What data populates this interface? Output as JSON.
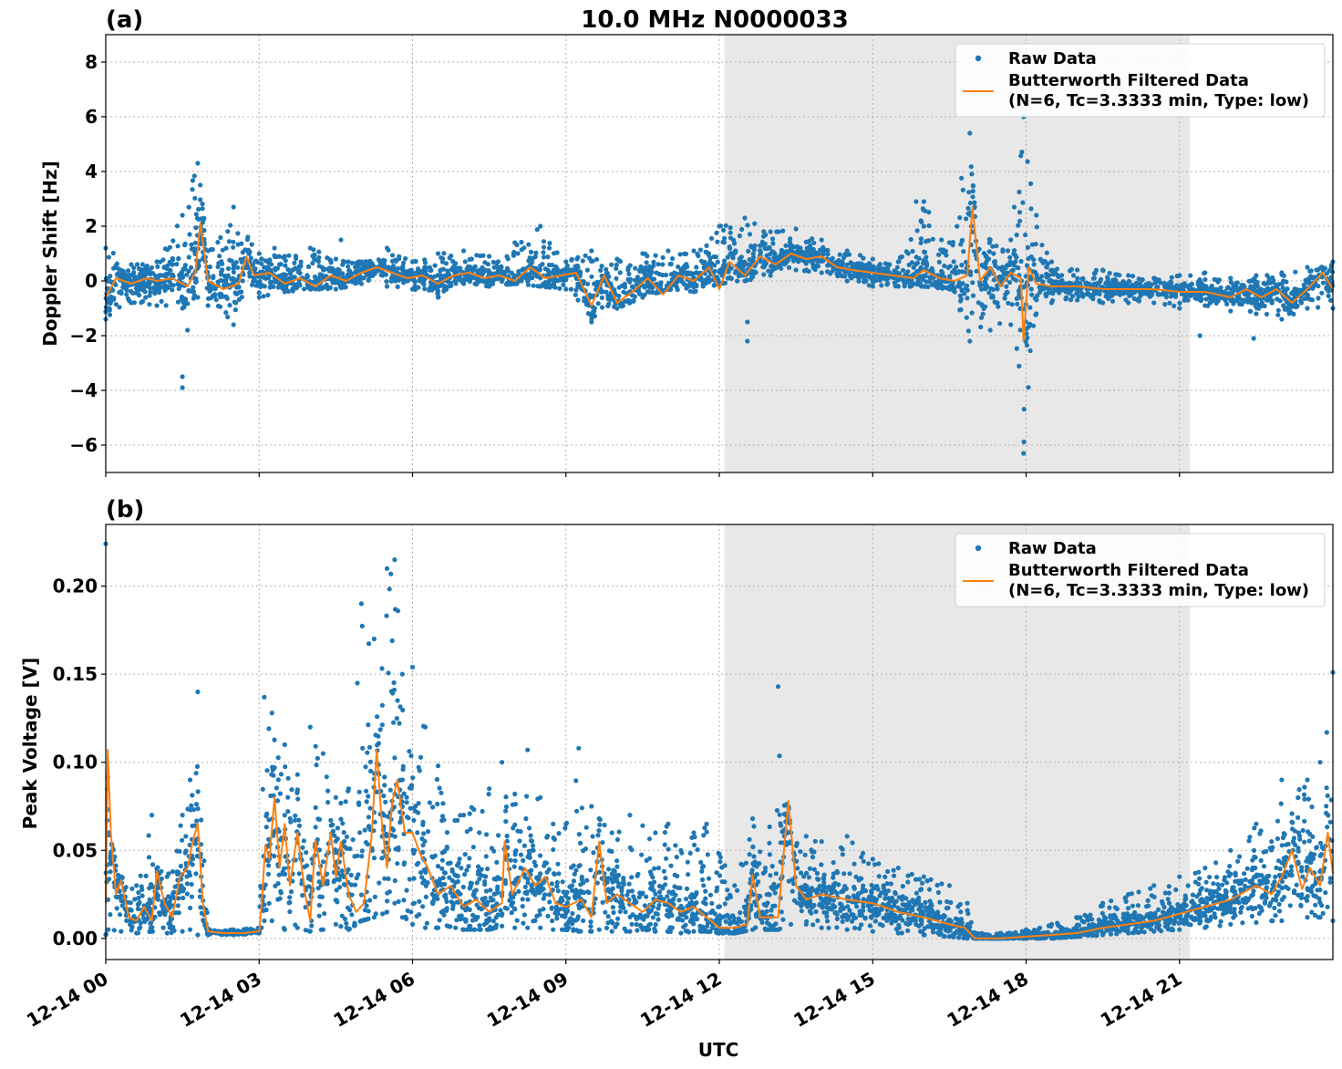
{
  "figure": {
    "title": "10.0 MHz N0000033",
    "xlabel": "UTC"
  },
  "colors": {
    "raw": "#1f77b4",
    "filtered": "#ff7f0e",
    "shade": "#e8e8e8",
    "grid": "#b0b0b0"
  },
  "chart_data": [
    {
      "type": "scatter",
      "panel_label": "(a)",
      "ylabel": "Doppler Shift [Hz]",
      "xlim_hours": [
        0,
        24
      ],
      "ylim": [
        -7,
        9
      ],
      "yticks": [
        8,
        6,
        4,
        2,
        0,
        -2,
        -4,
        -6
      ],
      "ytick_labels": [
        "8",
        "6",
        "4",
        "2",
        "0",
        "−2",
        "−4",
        "−6"
      ],
      "shaded_region_hours": [
        12.1,
        21.2
      ],
      "grid": true,
      "legend": {
        "placement": "top-right",
        "entries": [
          {
            "label": "Raw Data",
            "marker": "dot"
          },
          {
            "label": "Butterworth Filtered Data",
            "label2": "(N=6, Tc=3.3333 min, Type: low)",
            "marker": "line"
          }
        ]
      },
      "series": [
        {
          "name": "Raw Data",
          "type": "scatter",
          "x": [
            0.0,
            0.5,
            1.0,
            1.5,
            1.8,
            2.0,
            2.5,
            3.0,
            3.5,
            4.0,
            4.5,
            5.0,
            5.5,
            6.0,
            6.5,
            7.0,
            7.5,
            8.0,
            8.5,
            9.0,
            9.5,
            10.0,
            10.5,
            11.0,
            11.5,
            12.0,
            12.5,
            13.0,
            13.5,
            14.0,
            14.5,
            15.0,
            15.5,
            16.0,
            16.5,
            16.9,
            17.3,
            17.7,
            17.95,
            18.2,
            18.5,
            19.0,
            19.5,
            20.0,
            20.5,
            21.0,
            21.5,
            22.0,
            22.5,
            23.0,
            23.5,
            24.0
          ],
          "y_min": [
            -1.4,
            -0.8,
            -0.9,
            -1.0,
            -0.6,
            -0.9,
            -1.6,
            -0.6,
            -0.4,
            -0.3,
            -0.3,
            -0.1,
            -0.2,
            -0.3,
            -0.6,
            -0.1,
            -0.2,
            -0.1,
            -0.2,
            -0.3,
            -1.5,
            -1.0,
            -0.6,
            -0.3,
            -0.4,
            -0.1,
            0.0,
            0.2,
            0.4,
            0.3,
            0.0,
            -0.2,
            -0.2,
            -0.2,
            -0.3,
            -2.2,
            -1.8,
            -1.6,
            -6.3,
            -1.2,
            -0.8,
            -0.7,
            -0.8,
            -0.8,
            -0.8,
            -1.0,
            -0.9,
            -1.1,
            -1.2,
            -1.4,
            -1.0,
            -1.0
          ],
          "y_max": [
            1.2,
            0.6,
            0.7,
            2.4,
            4.3,
            1.1,
            2.7,
            1.0,
            0.9,
            1.2,
            0.8,
            0.7,
            1.2,
            0.7,
            1.0,
            1.1,
            0.9,
            1.4,
            2.0,
            0.7,
            1.1,
            0.8,
            1.0,
            1.1,
            1.1,
            2.0,
            2.3,
            1.8,
            1.9,
            1.5,
            1.1,
            0.8,
            0.7,
            2.9,
            1.4,
            5.4,
            1.5,
            1.5,
            6.0,
            2.4,
            0.7,
            0.4,
            0.4,
            0.2,
            0.1,
            0.2,
            0.3,
            0.1,
            0.2,
            0.3,
            0.5,
            0.7
          ],
          "outliers": [
            [
              1.5,
              -3.9
            ],
            [
              1.5,
              -3.5
            ],
            [
              1.6,
              -1.8
            ],
            [
              12.55,
              -2.2
            ],
            [
              12.55,
              -1.5
            ],
            [
              21.4,
              -2.0
            ],
            [
              22.45,
              -2.1
            ],
            [
              3.3,
              1.2
            ],
            [
              4.6,
              1.5
            ],
            [
              15.85,
              2.9
            ],
            [
              16.0,
              2.0
            ]
          ]
        },
        {
          "name": "Butterworth Filtered Data (N=6, Tc=3.3333 min, Type: low)",
          "type": "line",
          "x": [
            0.0,
            0.2,
            0.5,
            0.8,
            1.0,
            1.3,
            1.6,
            1.75,
            1.85,
            2.0,
            2.3,
            2.6,
            2.75,
            2.9,
            3.2,
            3.5,
            3.8,
            4.1,
            4.4,
            4.7,
            5.0,
            5.3,
            5.6,
            5.9,
            6.2,
            6.5,
            6.8,
            7.1,
            7.4,
            7.7,
            8.0,
            8.3,
            8.6,
            8.9,
            9.2,
            9.5,
            9.75,
            10.0,
            10.3,
            10.6,
            10.9,
            11.2,
            11.5,
            11.8,
            12.0,
            12.2,
            12.5,
            12.8,
            13.1,
            13.4,
            13.7,
            14.0,
            14.3,
            14.6,
            15.0,
            15.4,
            15.8,
            16.0,
            16.3,
            16.6,
            16.85,
            16.95,
            17.1,
            17.3,
            17.5,
            17.7,
            17.9,
            17.95,
            18.05,
            18.2,
            18.5,
            19.0,
            19.5,
            20.0,
            20.5,
            21.0,
            21.5,
            22.0,
            22.3,
            22.6,
            22.9,
            23.2,
            23.5,
            23.8,
            24.0
          ],
          "y": [
            -0.6,
            0.1,
            -0.1,
            0.1,
            0.0,
            0.1,
            -0.2,
            0.3,
            2.1,
            0.0,
            -0.3,
            -0.1,
            0.9,
            0.2,
            0.3,
            -0.1,
            0.1,
            -0.2,
            0.2,
            0.0,
            0.3,
            0.5,
            0.3,
            0.1,
            0.2,
            -0.1,
            0.2,
            0.3,
            0.1,
            0.2,
            0.0,
            0.5,
            0.1,
            0.2,
            0.3,
            -0.9,
            0.2,
            -0.8,
            -0.4,
            0.1,
            -0.5,
            0.2,
            0.0,
            0.5,
            -0.3,
            0.7,
            0.2,
            0.9,
            0.6,
            1.0,
            0.8,
            0.9,
            0.5,
            0.4,
            0.3,
            0.2,
            0.1,
            0.4,
            0.1,
            0.0,
            0.2,
            2.7,
            0.0,
            0.5,
            -0.2,
            0.3,
            0.1,
            -2.2,
            0.5,
            -0.1,
            -0.2,
            -0.2,
            -0.3,
            -0.3,
            -0.3,
            -0.4,
            -0.4,
            -0.6,
            -0.3,
            -0.6,
            -0.3,
            -0.8,
            -0.3,
            0.3,
            -0.3
          ]
        }
      ]
    },
    {
      "type": "scatter",
      "panel_label": "(b)",
      "ylabel": "Peak Voltage [V]",
      "xlim_hours": [
        0,
        24
      ],
      "ylim": [
        -0.012,
        0.235
      ],
      "yticks": [
        0.2,
        0.15,
        0.1,
        0.05,
        0.0
      ],
      "ytick_labels": [
        "0.20",
        "0.15",
        "0.10",
        "0.05",
        "0.00"
      ],
      "xticks_hours": [
        0,
        3,
        6,
        9,
        12,
        15,
        18,
        21
      ],
      "xtick_labels": [
        "12-14 00",
        "12-14 03",
        "12-14 06",
        "12-14 09",
        "12-14 12",
        "12-14 15",
        "12-14 18",
        "12-14 21"
      ],
      "shaded_region_hours": [
        12.1,
        21.2
      ],
      "grid": true,
      "legend": {
        "placement": "top-right",
        "entries": [
          {
            "label": "Raw Data",
            "marker": "dot"
          },
          {
            "label": "Butterworth Filtered Data",
            "label2": "(N=6, Tc=3.3333 min, Type: low)",
            "marker": "line"
          }
        ]
      },
      "series": [
        {
          "name": "Raw Data",
          "type": "scatter",
          "x": [
            0.0,
            0.05,
            0.3,
            0.6,
            0.9,
            1.2,
            1.5,
            1.65,
            1.8,
            2.0,
            2.5,
            3.0,
            3.1,
            3.25,
            3.5,
            3.75,
            4.0,
            4.25,
            4.5,
            4.75,
            5.0,
            5.25,
            5.5,
            5.65,
            5.8,
            6.0,
            6.25,
            6.5,
            7.0,
            7.5,
            7.75,
            8.0,
            8.25,
            8.5,
            8.75,
            9.0,
            9.25,
            9.5,
            9.65,
            9.9,
            10.25,
            10.5,
            10.75,
            11.0,
            11.25,
            11.5,
            11.75,
            12.0,
            12.3,
            12.65,
            12.9,
            13.15,
            13.4,
            13.7,
            14.0,
            14.5,
            15.0,
            15.5,
            16.0,
            16.5,
            16.85,
            17.0,
            17.5,
            18.0,
            18.5,
            19.0,
            19.5,
            20.0,
            20.5,
            21.0,
            21.5,
            22.0,
            22.5,
            22.8,
            23.0,
            23.5,
            23.75,
            24.0
          ],
          "y_min": [
            0.002,
            0.005,
            0.004,
            0.003,
            0.004,
            0.003,
            0.004,
            0.005,
            0.002,
            0.002,
            0.002,
            0.003,
            0.01,
            0.01,
            0.005,
            0.006,
            0.004,
            0.005,
            0.008,
            0.005,
            0.01,
            0.012,
            0.015,
            0.02,
            0.012,
            0.008,
            0.006,
            0.006,
            0.005,
            0.005,
            0.007,
            0.006,
            0.006,
            0.006,
            0.005,
            0.005,
            0.004,
            0.004,
            0.005,
            0.004,
            0.004,
            0.005,
            0.004,
            0.004,
            0.003,
            0.004,
            0.004,
            0.003,
            0.003,
            0.005,
            0.005,
            0.005,
            0.008,
            0.008,
            0.006,
            0.005,
            0.004,
            0.003,
            0.002,
            0.001,
            0.0,
            0.0,
            0.0,
            0.0,
            0.0,
            0.001,
            0.002,
            0.003,
            0.004,
            0.005,
            0.006,
            0.008,
            0.009,
            0.01,
            0.01,
            0.012,
            0.012,
            0.01
          ],
          "y_max": [
            0.224,
            0.06,
            0.035,
            0.03,
            0.07,
            0.035,
            0.07,
            0.09,
            0.14,
            0.005,
            0.005,
            0.006,
            0.137,
            0.128,
            0.11,
            0.093,
            0.12,
            0.105,
            0.08,
            0.085,
            0.19,
            0.17,
            0.21,
            0.215,
            0.15,
            0.154,
            0.12,
            0.098,
            0.07,
            0.085,
            0.1,
            0.082,
            0.107,
            0.08,
            0.065,
            0.065,
            0.108,
            0.075,
            0.068,
            0.06,
            0.07,
            0.064,
            0.06,
            0.065,
            0.05,
            0.06,
            0.065,
            0.048,
            0.03,
            0.068,
            0.04,
            0.143,
            0.06,
            0.058,
            0.055,
            0.058,
            0.045,
            0.04,
            0.035,
            0.03,
            0.02,
            0.003,
            0.003,
            0.005,
            0.008,
            0.012,
            0.02,
            0.025,
            0.03,
            0.035,
            0.04,
            0.05,
            0.065,
            0.055,
            0.09,
            0.09,
            0.1,
            0.151
          ]
        },
        {
          "name": "Butterworth Filtered Data (N=6, Tc=3.3333 min, Type: low)",
          "type": "line",
          "x": [
            0.0,
            0.04,
            0.1,
            0.2,
            0.3,
            0.45,
            0.6,
            0.75,
            0.9,
            1.0,
            1.15,
            1.3,
            1.45,
            1.6,
            1.7,
            1.8,
            1.9,
            2.0,
            2.3,
            2.7,
            3.0,
            3.05,
            3.12,
            3.2,
            3.3,
            3.4,
            3.5,
            3.6,
            3.75,
            3.9,
            4.0,
            4.1,
            4.25,
            4.4,
            4.5,
            4.6,
            4.75,
            4.9,
            5.05,
            5.2,
            5.3,
            5.4,
            5.5,
            5.6,
            5.7,
            5.85,
            6.0,
            6.15,
            6.3,
            6.5,
            6.75,
            7.0,
            7.25,
            7.5,
            7.75,
            7.8,
            7.95,
            8.2,
            8.4,
            8.6,
            8.8,
            9.0,
            9.3,
            9.5,
            9.65,
            9.8,
            10.0,
            10.25,
            10.5,
            10.75,
            11.0,
            11.25,
            11.5,
            11.75,
            12.0,
            12.3,
            12.55,
            12.65,
            12.8,
            12.95,
            13.15,
            13.35,
            13.5,
            13.7,
            14.0,
            14.5,
            15.0,
            15.5,
            16.0,
            16.5,
            16.8,
            17.0,
            17.5,
            18.0,
            18.5,
            19.0,
            19.5,
            20.0,
            20.5,
            21.0,
            21.5,
            22.0,
            22.5,
            22.8,
            23.0,
            23.2,
            23.4,
            23.55,
            23.75,
            23.9,
            24.0
          ],
          "y": [
            0.02,
            0.107,
            0.06,
            0.025,
            0.033,
            0.012,
            0.01,
            0.018,
            0.01,
            0.038,
            0.02,
            0.012,
            0.035,
            0.04,
            0.055,
            0.065,
            0.02,
            0.004,
            0.003,
            0.003,
            0.004,
            0.02,
            0.053,
            0.045,
            0.08,
            0.04,
            0.065,
            0.03,
            0.06,
            0.025,
            0.01,
            0.056,
            0.03,
            0.06,
            0.035,
            0.055,
            0.025,
            0.015,
            0.02,
            0.058,
            0.107,
            0.065,
            0.04,
            0.077,
            0.09,
            0.06,
            0.06,
            0.048,
            0.04,
            0.025,
            0.03,
            0.018,
            0.022,
            0.015,
            0.02,
            0.055,
            0.025,
            0.04,
            0.03,
            0.035,
            0.02,
            0.018,
            0.022,
            0.012,
            0.055,
            0.02,
            0.025,
            0.02,
            0.015,
            0.022,
            0.02,
            0.015,
            0.018,
            0.012,
            0.006,
            0.006,
            0.008,
            0.036,
            0.012,
            0.012,
            0.012,
            0.078,
            0.03,
            0.022,
            0.025,
            0.022,
            0.02,
            0.015,
            0.012,
            0.008,
            0.006,
            0.0,
            0.0,
            0.001,
            0.002,
            0.003,
            0.006,
            0.008,
            0.01,
            0.014,
            0.018,
            0.022,
            0.03,
            0.025,
            0.035,
            0.05,
            0.028,
            0.04,
            0.03,
            0.06,
            0.037
          ]
        }
      ]
    }
  ]
}
